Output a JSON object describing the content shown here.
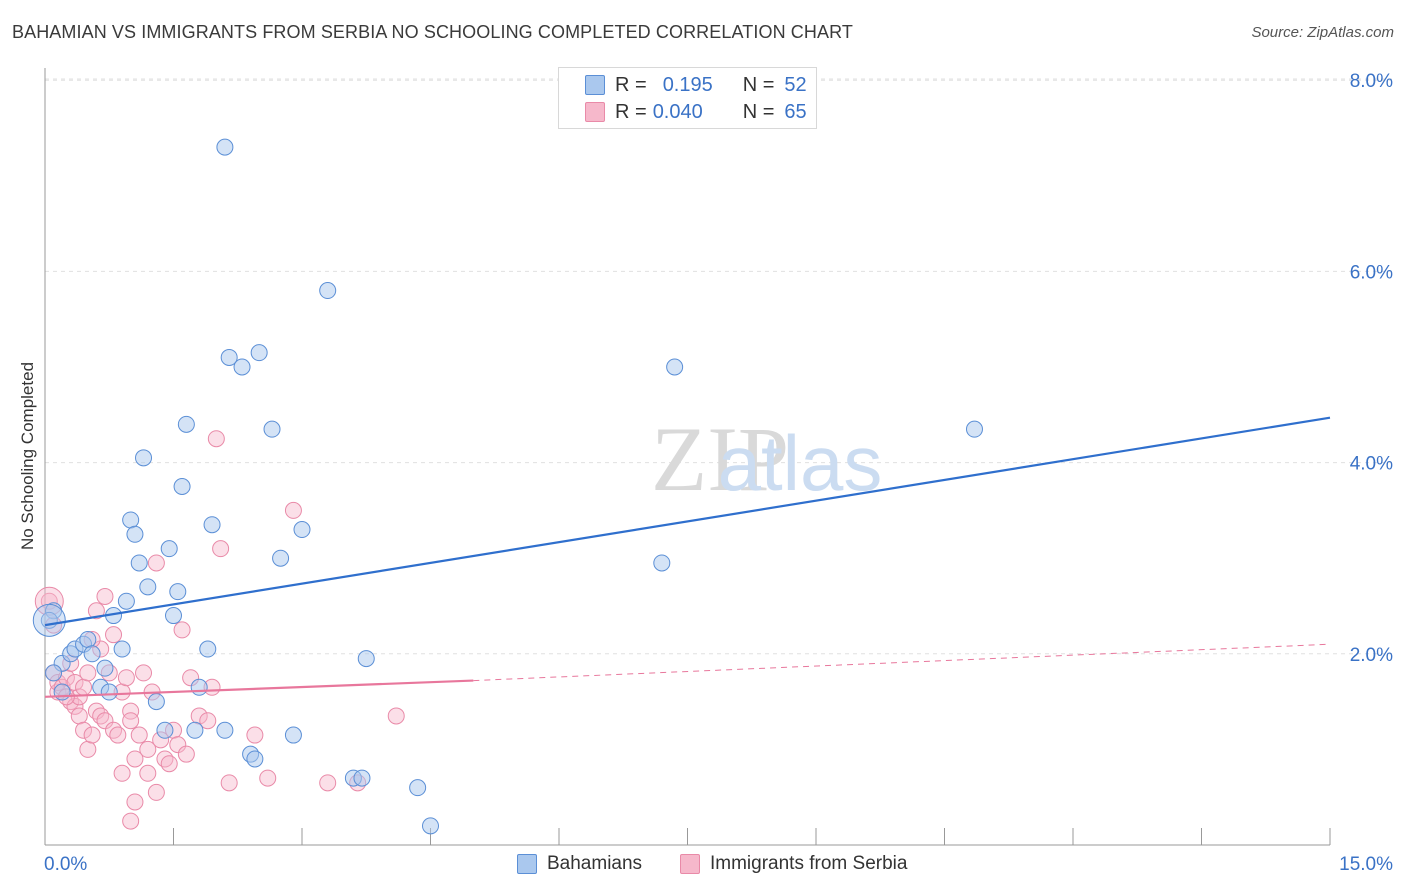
{
  "header": {
    "title": "BAHAMIAN VS IMMIGRANTS FROM SERBIA NO SCHOOLING COMPLETED CORRELATION CHART",
    "source": "Source: ZipAtlas.com"
  },
  "watermark": {
    "zip": "ZIP",
    "atlas": "atlas"
  },
  "legend": {
    "series1": {
      "r_label": "R =",
      "r_value": "0.195",
      "n_label": "N =",
      "n_value": "52"
    },
    "series2": {
      "r_label": "R =",
      "r_value": "0.040",
      "n_label": "N =",
      "n_value": "65"
    }
  },
  "bottom_legend": {
    "series1": "Bahamians",
    "series2": "Immigrants from Serbia"
  },
  "colors": {
    "blue_fill": "#aac8ee",
    "blue_stroke": "#5b8fd6",
    "blue_line": "#2f6fcd",
    "pink_fill": "#f6b8cb",
    "pink_stroke": "#e98aa8",
    "pink_line": "#e8779c",
    "tick_label": "#3a72c6",
    "grid": "#e0e0e0"
  },
  "chart_data": {
    "type": "scatter",
    "title": "BAHAMIAN VS IMMIGRANTS FROM SERBIA NO SCHOOLING COMPLETED CORRELATION CHART",
    "xlabel": "",
    "ylabel": "No Schooling Completed",
    "xlim": [
      0,
      15
    ],
    "ylim": [
      0,
      8
    ],
    "x_tick_labels": [
      "0.0%",
      "15.0%"
    ],
    "y_ticks": [
      2,
      4,
      6,
      8
    ],
    "y_tick_labels": [
      "2.0%",
      "4.0%",
      "6.0%",
      "8.0%"
    ],
    "grid": true,
    "series": [
      {
        "name": "Bahamians",
        "r": 0.195,
        "n": 52,
        "trend": {
          "x": [
            0,
            15
          ],
          "y": [
            2.3,
            4.47
          ]
        },
        "points": [
          [
            0.2,
            1.9
          ],
          [
            0.1,
            1.8
          ],
          [
            0.3,
            2.0
          ],
          [
            0.35,
            2.05
          ],
          [
            0.45,
            2.1
          ],
          [
            0.5,
            2.15
          ],
          [
            0.55,
            2.0
          ],
          [
            0.65,
            1.65
          ],
          [
            0.7,
            1.85
          ],
          [
            0.75,
            1.6
          ],
          [
            0.8,
            2.4
          ],
          [
            0.9,
            2.05
          ],
          [
            0.95,
            2.55
          ],
          [
            1.0,
            3.4
          ],
          [
            1.05,
            3.25
          ],
          [
            1.1,
            2.95
          ],
          [
            1.15,
            4.05
          ],
          [
            1.2,
            2.7
          ],
          [
            1.3,
            1.5
          ],
          [
            1.4,
            1.2
          ],
          [
            1.45,
            3.1
          ],
          [
            1.5,
            2.4
          ],
          [
            1.55,
            2.65
          ],
          [
            1.6,
            3.75
          ],
          [
            1.65,
            4.4
          ],
          [
            1.75,
            1.2
          ],
          [
            1.8,
            1.65
          ],
          [
            1.9,
            2.05
          ],
          [
            1.95,
            3.35
          ],
          [
            2.1,
            1.2
          ],
          [
            2.1,
            7.3
          ],
          [
            2.15,
            5.1
          ],
          [
            2.3,
            5.0
          ],
          [
            2.4,
            0.95
          ],
          [
            2.45,
            0.9
          ],
          [
            2.5,
            5.15
          ],
          [
            2.65,
            4.35
          ],
          [
            2.75,
            3.0
          ],
          [
            2.9,
            1.15
          ],
          [
            3.0,
            3.3
          ],
          [
            3.3,
            5.8
          ],
          [
            3.6,
            0.7
          ],
          [
            3.7,
            0.7
          ],
          [
            3.75,
            1.95
          ],
          [
            4.35,
            0.6
          ],
          [
            4.5,
            0.2
          ],
          [
            7.2,
            2.95
          ],
          [
            7.35,
            5.0
          ],
          [
            10.85,
            4.35
          ],
          [
            0.1,
            2.45
          ],
          [
            0.2,
            1.6
          ],
          [
            0.05,
            2.35
          ]
        ]
      },
      {
        "name": "Immigrants from Serbia",
        "r": 0.04,
        "n": 65,
        "trend": {
          "x": [
            0,
            5
          ],
          "y": [
            1.55,
            1.72
          ]
        },
        "trend_dashed": {
          "x": [
            5,
            15
          ],
          "y": [
            1.72,
            2.1
          ]
        },
        "points": [
          [
            0.05,
            2.55
          ],
          [
            0.1,
            2.3
          ],
          [
            0.1,
            1.8
          ],
          [
            0.15,
            1.6
          ],
          [
            0.15,
            1.7
          ],
          [
            0.2,
            1.65
          ],
          [
            0.25,
            1.75
          ],
          [
            0.3,
            1.9
          ],
          [
            0.3,
            1.5
          ],
          [
            0.35,
            1.45
          ],
          [
            0.35,
            1.7
          ],
          [
            0.4,
            1.35
          ],
          [
            0.4,
            1.55
          ],
          [
            0.45,
            1.2
          ],
          [
            0.45,
            1.65
          ],
          [
            0.5,
            1.8
          ],
          [
            0.5,
            1.0
          ],
          [
            0.55,
            1.15
          ],
          [
            0.6,
            2.45
          ],
          [
            0.6,
            1.4
          ],
          [
            0.65,
            1.35
          ],
          [
            0.65,
            2.05
          ],
          [
            0.7,
            1.3
          ],
          [
            0.75,
            1.8
          ],
          [
            0.8,
            1.2
          ],
          [
            0.8,
            2.2
          ],
          [
            0.85,
            1.15
          ],
          [
            0.9,
            1.6
          ],
          [
            0.9,
            0.75
          ],
          [
            0.95,
            1.75
          ],
          [
            1.0,
            1.4
          ],
          [
            1.0,
            1.3
          ],
          [
            1.05,
            0.45
          ],
          [
            1.05,
            0.9
          ],
          [
            1.1,
            1.15
          ],
          [
            1.15,
            1.8
          ],
          [
            1.2,
            0.75
          ],
          [
            1.2,
            1.0
          ],
          [
            1.25,
            1.6
          ],
          [
            1.3,
            2.95
          ],
          [
            1.3,
            0.55
          ],
          [
            1.35,
            1.1
          ],
          [
            1.4,
            0.9
          ],
          [
            1.45,
            0.85
          ],
          [
            1.5,
            1.2
          ],
          [
            1.55,
            1.05
          ],
          [
            1.6,
            2.25
          ],
          [
            1.65,
            0.95
          ],
          [
            1.7,
            1.75
          ],
          [
            1.8,
            1.35
          ],
          [
            1.9,
            1.3
          ],
          [
            1.95,
            1.65
          ],
          [
            2.0,
            4.25
          ],
          [
            2.05,
            3.1
          ],
          [
            2.15,
            0.65
          ],
          [
            2.45,
            1.15
          ],
          [
            2.6,
            0.7
          ],
          [
            2.9,
            3.5
          ],
          [
            3.3,
            0.65
          ],
          [
            3.65,
            0.65
          ],
          [
            4.1,
            1.35
          ],
          [
            0.55,
            2.15
          ],
          [
            0.7,
            2.6
          ],
          [
            1.0,
            0.25
          ],
          [
            0.25,
            1.55
          ]
        ]
      }
    ]
  }
}
